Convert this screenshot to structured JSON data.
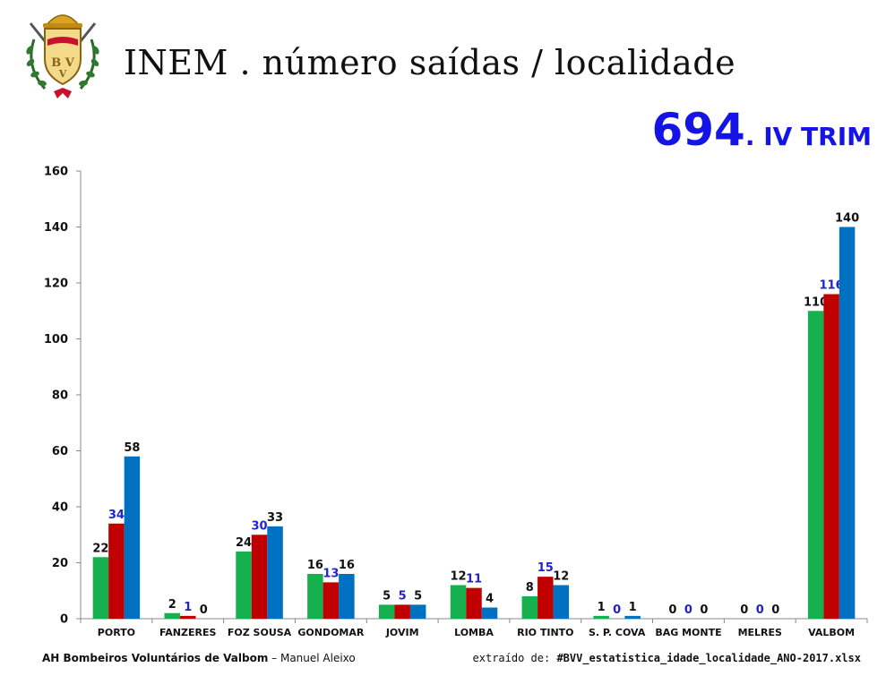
{
  "header": {
    "title": "INEM . número saídas / localidade",
    "total_value": "694",
    "total_suffix": ". IV TRIM",
    "logo_text": "BVV"
  },
  "footer": {
    "org": "AH Bombeiros Voluntários de Valbom",
    "dash": " – ",
    "author": "Manuel Aleixo",
    "source_prefix": "extraído de: ",
    "source_file": "#BVV_estatistica_idade_localidade_ANO-2017.xlsx"
  },
  "chart_data": {
    "type": "bar",
    "title": "",
    "xlabel": "",
    "ylabel": "",
    "ylim": [
      0,
      160
    ],
    "yticks": [
      0,
      20,
      40,
      60,
      80,
      100,
      120,
      140,
      160
    ],
    "grid": false,
    "categories": [
      "PORTO",
      "FANZERES",
      "FOZ SOUSA",
      "GONDOMAR",
      "JOVIM",
      "LOMBA",
      "RIO TINTO",
      "S. P. COVA",
      "BAG MONTE",
      "MELRES",
      "VALBOM"
    ],
    "series": [
      {
        "color": "#16b04e",
        "label_color": "#111111",
        "values": [
          22,
          2,
          24,
          16,
          5,
          12,
          8,
          1,
          0,
          0,
          110
        ]
      },
      {
        "color": "#c00000",
        "label_color": "#2222cc",
        "values": [
          34,
          1,
          30,
          13,
          5,
          11,
          15,
          0,
          0,
          0,
          116
        ]
      },
      {
        "color": "#0070c0",
        "label_color": "#111111",
        "values": [
          58,
          0,
          33,
          16,
          5,
          4,
          12,
          1,
          0,
          0,
          140
        ]
      }
    ]
  }
}
